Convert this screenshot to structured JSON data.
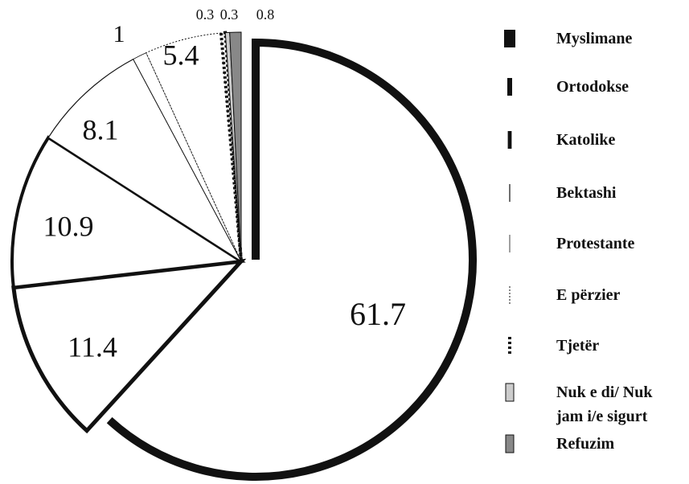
{
  "chart_data": {
    "type": "pie",
    "categories": [
      "Myslimane",
      "Ortodokse",
      "Katolike",
      "Bektashi",
      "Protestante",
      "E përzier",
      "Tjetër",
      "Nuk e di/ Nuk jam i/e sigurt",
      "Refuzim"
    ],
    "values": [
      61.7,
      11.4,
      10.9,
      8.1,
      1,
      5.4,
      0.3,
      0.3,
      0.8
    ],
    "colors": [
      "#ffffff",
      "#ffffff",
      "#ffffff",
      "#ffffff",
      "#ffffff",
      "#ffffff",
      "#ffffff",
      "#cccccc",
      "#888888"
    ]
  }
}
